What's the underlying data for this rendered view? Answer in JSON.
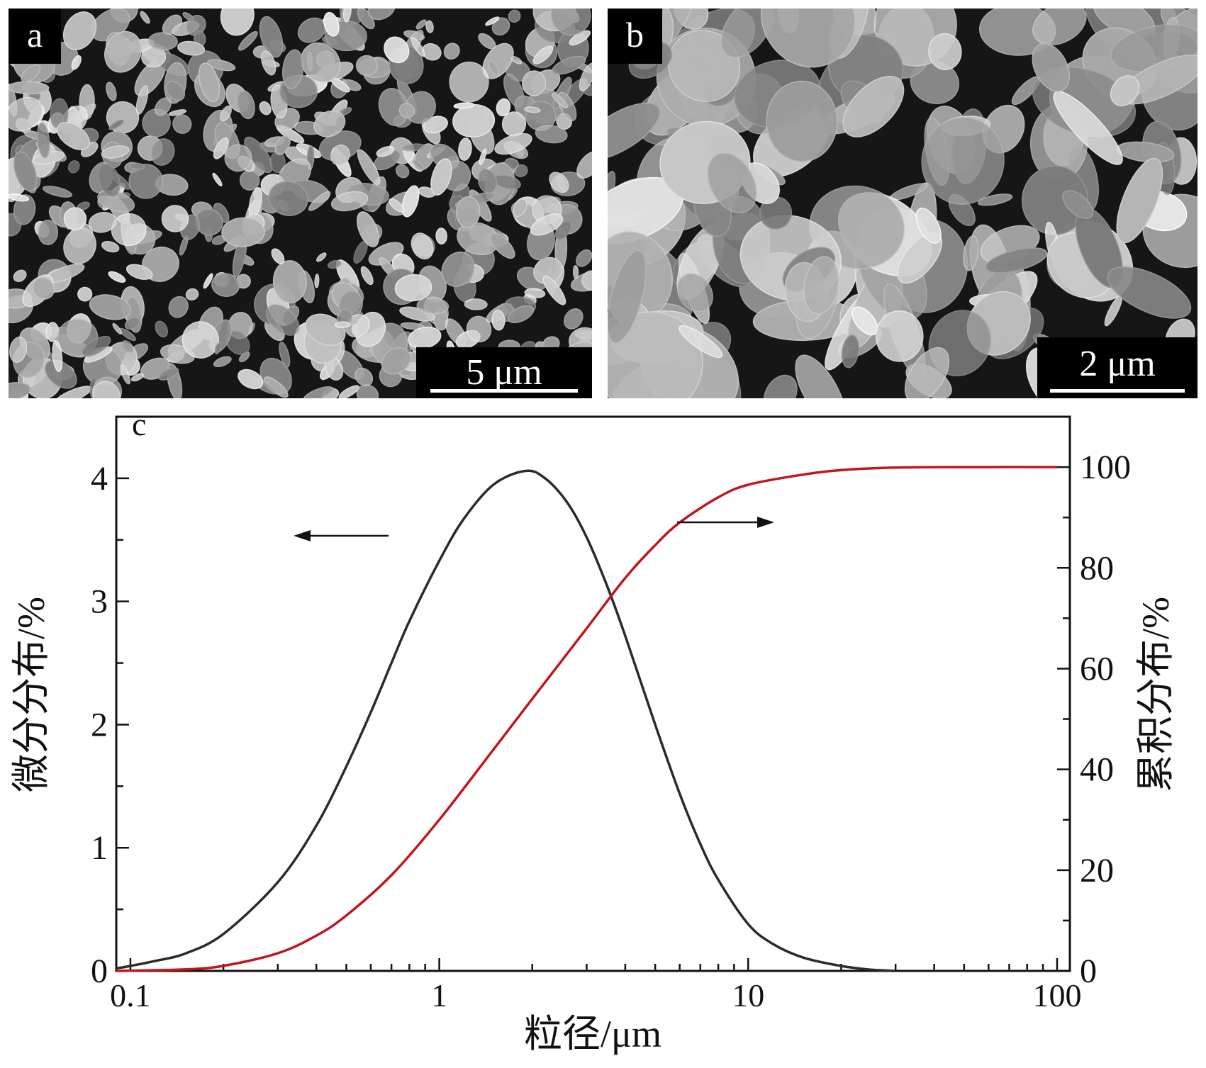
{
  "panels": {
    "a": {
      "label": "a",
      "scale_bar": "5 μm"
    },
    "b": {
      "label": "b",
      "scale_bar": "2 μm"
    }
  },
  "chart_data": {
    "type": "line",
    "panel_label": "c",
    "xlabel": "粒径/μm",
    "ylabel_left": "微分分布/%",
    "ylabel_right": "累积分布/%",
    "xscale": "log",
    "xlim": [
      0.09,
      110
    ],
    "ylim_left": [
      0,
      4.5
    ],
    "ylim_right": [
      0,
      110
    ],
    "x_ticks": [
      "0.1",
      "1",
      "10",
      "100"
    ],
    "y_left_ticks": [
      "0",
      "1",
      "2",
      "3",
      "4"
    ],
    "y_right_ticks": [
      "0",
      "20",
      "40",
      "60",
      "80",
      "100"
    ],
    "grid": false,
    "colors": {
      "differential": "#2a2a2a",
      "cumulative": "#c0161c"
    },
    "series": [
      {
        "axis": "left",
        "x": [
          0.09,
          0.1,
          0.12,
          0.15,
          0.2,
          0.3,
          0.4,
          0.5,
          0.6,
          0.7,
          0.8,
          1.0,
          1.2,
          1.5,
          1.9,
          2.2,
          2.6,
          3.0,
          3.5,
          4.0,
          5.0,
          6.0,
          7.0,
          8.0,
          10.0,
          12.0,
          15.0,
          20.0,
          25.0,
          30.0
        ],
        "y": [
          0.02,
          0.04,
          0.08,
          0.14,
          0.3,
          0.72,
          1.18,
          1.66,
          2.1,
          2.5,
          2.84,
          3.33,
          3.67,
          3.95,
          4.06,
          4.0,
          3.8,
          3.52,
          3.12,
          2.72,
          2.0,
          1.44,
          1.03,
          0.74,
          0.38,
          0.22,
          0.11,
          0.04,
          0.01,
          0.0
        ]
      },
      {
        "axis": "right",
        "x": [
          0.09,
          0.15,
          0.2,
          0.3,
          0.4,
          0.5,
          0.7,
          1.0,
          1.5,
          2.0,
          3.0,
          4.0,
          5.0,
          6.0,
          8.0,
          10.0,
          15.0,
          20.0,
          30.0,
          50.0,
          100.0
        ],
        "y": [
          0.0,
          0.3,
          1.0,
          3.5,
          7.0,
          11.0,
          19.0,
          30.0,
          44.0,
          54.0,
          68.0,
          78.0,
          84.5,
          89.0,
          94.0,
          96.5,
          98.5,
          99.4,
          99.9,
          100.0,
          100.0
        ]
      }
    ]
  }
}
